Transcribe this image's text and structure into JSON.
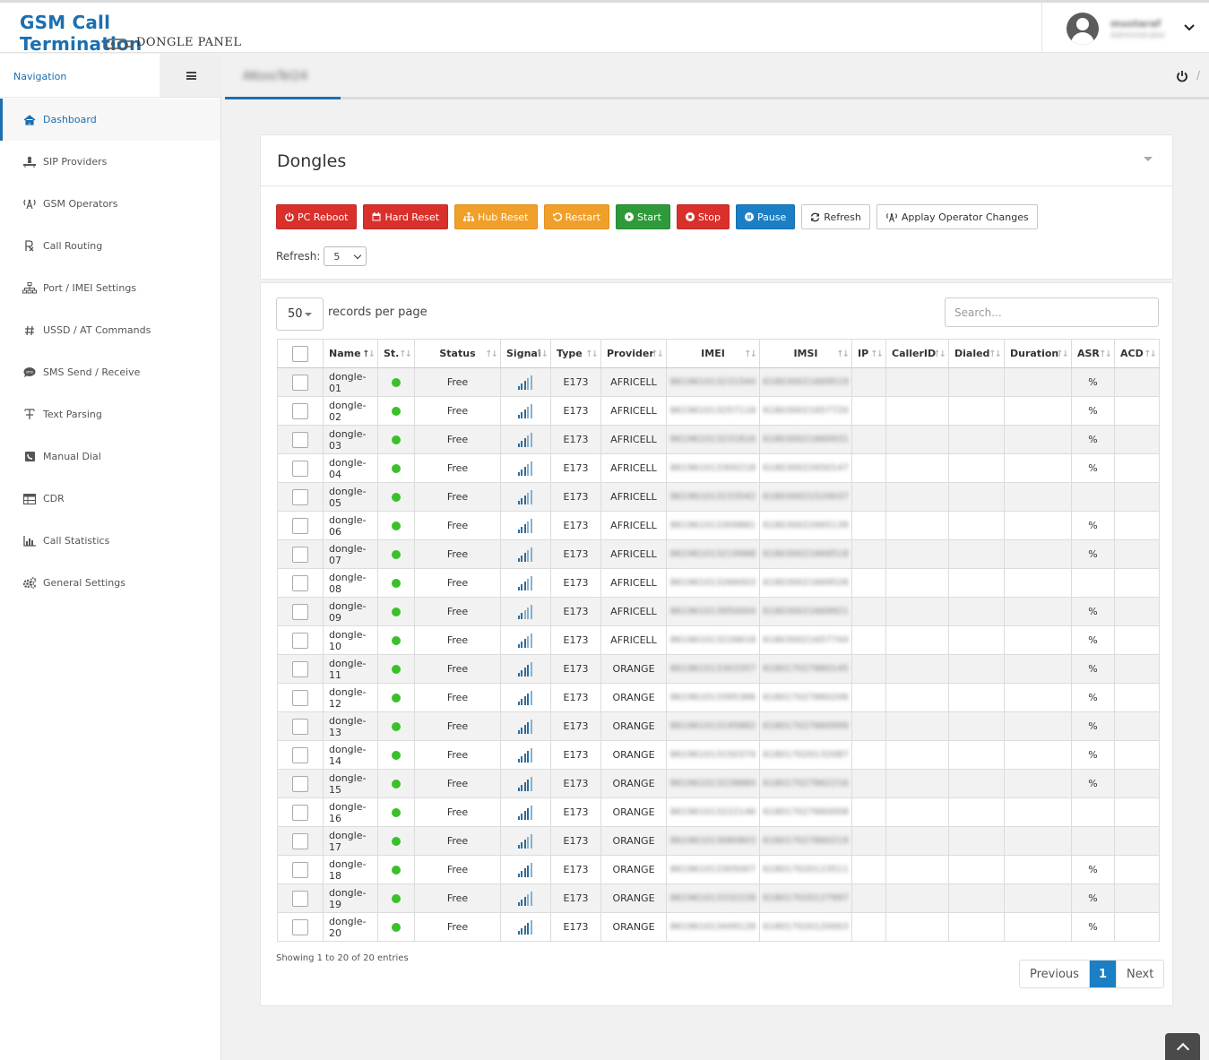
{
  "brand": {
    "title": "GSM Call Termination",
    "subtitle": "DONGLE PANEL"
  },
  "user": {
    "name": "mustaraf",
    "role": "Administrator"
  },
  "nav": {
    "heading": "Navigation",
    "items": [
      {
        "label": "Dashboard",
        "icon": "home-icon"
      },
      {
        "label": "SIP Providers",
        "icon": "sip-icon"
      },
      {
        "label": "GSM Operators",
        "icon": "antenna-icon"
      },
      {
        "label": "Call Routing",
        "icon": "routing-icon"
      },
      {
        "label": "Port / IMEI Settings",
        "icon": "sitemap-icon"
      },
      {
        "label": "USSD / AT Commands",
        "icon": "hash-icon"
      },
      {
        "label": "SMS Send / Receive",
        "icon": "sms-icon"
      },
      {
        "label": "Text Parsing",
        "icon": "text-icon"
      },
      {
        "label": "Manual Dial",
        "icon": "dial-icon"
      },
      {
        "label": "CDR",
        "icon": "table-icon"
      },
      {
        "label": "Call Statistics",
        "icon": "bar-chart-icon"
      },
      {
        "label": "General Settings",
        "icon": "gears-icon"
      }
    ]
  },
  "breadcrumb": {
    "current": "AKossTel24"
  },
  "panel": {
    "title": "Dongles",
    "buttons": {
      "pc_reboot": "PC Reboot",
      "hard_reset": "Hard Reset",
      "hub_reset": "Hub Reset",
      "restart": "Restart",
      "start": "Start",
      "stop": "Stop",
      "pause": "Pause",
      "refresh": "Refresh",
      "apply": "Applay Operator Changes"
    },
    "refresh_label": "Refresh:",
    "refresh_value": "5"
  },
  "table": {
    "length_value": "50",
    "length_label": "records per page",
    "search_placeholder": "Search...",
    "columns": [
      "Name",
      "St.",
      "Status",
      "Signal",
      "Type",
      "Provider",
      "IMEI",
      "IMSI",
      "IP",
      "CallerID",
      "Dialed",
      "Duration",
      "ASR",
      "ACD"
    ],
    "rows": [
      {
        "name": "dongle-01",
        "status": "Free",
        "signal": 3,
        "type": "E173",
        "provider": "AFRICELL",
        "imei": "861961013231544",
        "imsi": "618030021669519",
        "asr": "%"
      },
      {
        "name": "dongle-02",
        "status": "Free",
        "signal": 3,
        "type": "E173",
        "provider": "AFRICELL",
        "imei": "861961013257118",
        "imsi": "618030021657720",
        "asr": "%"
      },
      {
        "name": "dongle-03",
        "status": "Free",
        "signal": 3,
        "type": "E173",
        "provider": "AFRICELL",
        "imei": "861961013231816",
        "imsi": "618030021660931",
        "asr": "%"
      },
      {
        "name": "dongle-04",
        "status": "Free",
        "signal": 3,
        "type": "E173",
        "provider": "AFRICELL",
        "imei": "861961013300218",
        "imsi": "618030022650147",
        "asr": "%"
      },
      {
        "name": "dongle-05",
        "status": "Free",
        "signal": 3,
        "type": "E173",
        "provider": "AFRICELL",
        "imei": "861961013233542",
        "imsi": "618030021520037",
        "asr": ""
      },
      {
        "name": "dongle-06",
        "status": "Free",
        "signal": 3,
        "type": "E173",
        "provider": "AFRICELL",
        "imei": "861961013309881",
        "imsi": "618030022665139",
        "asr": "%"
      },
      {
        "name": "dongle-07",
        "status": "Free",
        "signal": 3,
        "type": "E173",
        "provider": "AFRICELL",
        "imei": "861961013219988",
        "imsi": "618030021669518",
        "asr": "%"
      },
      {
        "name": "dongle-08",
        "status": "Free",
        "signal": 3,
        "type": "E173",
        "provider": "AFRICELL",
        "imei": "861961013266003",
        "imsi": "618030021669528",
        "asr": ""
      },
      {
        "name": "dongle-09",
        "status": "Free",
        "signal": 2,
        "type": "E173",
        "provider": "AFRICELL",
        "imei": "861961013950004",
        "imsi": "618030021669921",
        "asr": "%"
      },
      {
        "name": "dongle-10",
        "status": "Free",
        "signal": 3,
        "type": "E173",
        "provider": "AFRICELL",
        "imei": "861961013226618",
        "imsi": "618030021657744",
        "asr": "%"
      },
      {
        "name": "dongle-11",
        "status": "Free",
        "signal": 4,
        "type": "E173",
        "provider": "ORANGE",
        "imei": "861961013303357",
        "imsi": "618017027860145",
        "asr": "%"
      },
      {
        "name": "dongle-12",
        "status": "Free",
        "signal": 4,
        "type": "E173",
        "provider": "ORANGE",
        "imei": "861961013395386",
        "imsi": "618017027860206",
        "asr": "%"
      },
      {
        "name": "dongle-13",
        "status": "Free",
        "signal": 4,
        "type": "E173",
        "provider": "ORANGE",
        "imei": "861961013195882",
        "imsi": "618017027860999",
        "asr": "%"
      },
      {
        "name": "dongle-14",
        "status": "Free",
        "signal": 4,
        "type": "E173",
        "provider": "ORANGE",
        "imei": "861961013150374",
        "imsi": "618017020132087",
        "asr": "%"
      },
      {
        "name": "dongle-15",
        "status": "Free",
        "signal": 4,
        "type": "E173",
        "provider": "ORANGE",
        "imei": "861961013228884",
        "imsi": "618017027862216",
        "asr": "%"
      },
      {
        "name": "dongle-16",
        "status": "Free",
        "signal": 4,
        "type": "E173",
        "provider": "ORANGE",
        "imei": "861961013222146",
        "imsi": "618017027860008",
        "asr": ""
      },
      {
        "name": "dongle-17",
        "status": "Free",
        "signal": 3,
        "type": "E173",
        "provider": "ORANGE",
        "imei": "861961013080803",
        "imsi": "618017027860219",
        "asr": ""
      },
      {
        "name": "dongle-18",
        "status": "Free",
        "signal": 4,
        "type": "E173",
        "provider": "ORANGE",
        "imei": "861961013305007",
        "imsi": "618017020123511",
        "asr": "%"
      },
      {
        "name": "dongle-19",
        "status": "Free",
        "signal": 3,
        "type": "E173",
        "provider": "ORANGE",
        "imei": "861961013332228",
        "imsi": "618017020127997",
        "asr": "%"
      },
      {
        "name": "dongle-20",
        "status": "Free",
        "signal": 4,
        "type": "E173",
        "provider": "ORANGE",
        "imei": "861961013449128",
        "imsi": "618017020120003",
        "asr": "%"
      }
    ],
    "info": "Showing 1 to 20 of 20 entries",
    "pager": {
      "prev": "Previous",
      "current": "1",
      "next": "Next"
    }
  },
  "colors": {
    "accent": "#1c6fb0",
    "danger": "#d9302c",
    "warning": "#f0a02a",
    "success": "#2f9a3a",
    "primary": "#1a7fc4",
    "online": "#3bbf2b"
  }
}
